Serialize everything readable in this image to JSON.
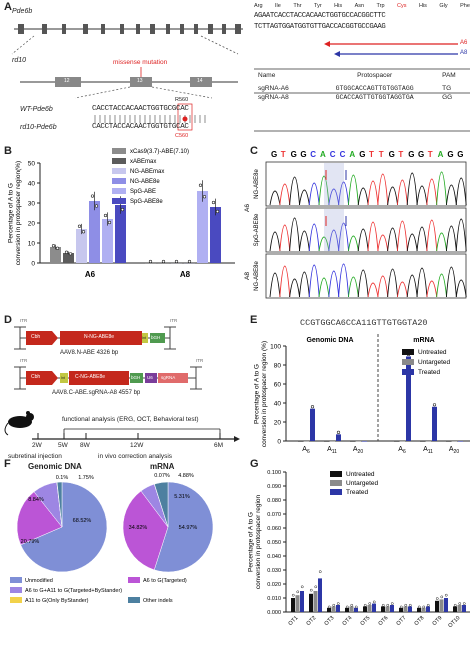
{
  "panel_letters": [
    "A",
    "B",
    "C",
    "D",
    "E",
    "F",
    "G"
  ],
  "panel_a": {
    "gene_label": "Pde6b",
    "rd10_label": "rd10",
    "mutation_label": "missense mutation",
    "exons": [
      "12",
      "13",
      "14"
    ],
    "wt_label": "WT-Pde6b",
    "rd10_row_label": "rd10-Pde6b",
    "wt_seq": "CACCTACCACAACTGGTGCGCAC",
    "rd10_seq": "CACCTACCACAACTGGTGTGCAC",
    "wt_residue": "R560",
    "rd10_residue": "C560",
    "aa_row": [
      "Arg",
      "Ile",
      "Thr",
      "Tyr",
      "His",
      "Asn",
      "Trp",
      "Cys",
      "His",
      "Gly",
      "Phe"
    ],
    "seq_top": "AGAATCACCTACCACAACTGGTGCCACGGCTTC",
    "seq_bottom": "TCTTAGTGGATGGTGTTGACCACGGTGCCGAAG",
    "guide_labels": [
      "A6",
      "A8"
    ],
    "table_headers": [
      "Name",
      "Protospacer",
      "PAM"
    ],
    "table_rows": [
      {
        "name": "sgRNA-A6",
        "protospacer": "GTGGCACCAGTTGTGGTAGG",
        "pam": "TG"
      },
      {
        "name": "sgRNA-A8",
        "protospacer": "GCACCAGTTGTGGTAGGTGA",
        "pam": "GG"
      }
    ]
  },
  "panel_b": {
    "chart_data": {
      "type": "bar",
      "ylabel": "Percentage of A to G conversion in protospacer region(%)",
      "categories": [
        "A6",
        "A8"
      ],
      "ylim": [
        0,
        50
      ],
      "yticks": [
        0,
        10,
        20,
        30,
        40,
        50
      ],
      "series": [
        {
          "name": "xCas9(3.7)-ABE(7.10)",
          "color": "#8c8c8c",
          "values": [
            8,
            0
          ]
        },
        {
          "name": "xABEmax",
          "color": "#5c5c5c",
          "values": [
            5,
            0
          ]
        },
        {
          "name": "NG-ABEmax",
          "color": "#c7c7ee",
          "values": [
            17,
            0
          ]
        },
        {
          "name": "NG-ABE8e",
          "color": "#8e8ee6",
          "values": [
            31,
            0
          ]
        },
        {
          "name": "SpG-ABE",
          "color": "#b0b0f2",
          "values": [
            22,
            36
          ]
        },
        {
          "name": "SpG-ABE8e",
          "color": "#4a4ac0",
          "values": [
            29,
            28
          ]
        }
      ]
    }
  },
  "panel_c": {
    "seq": [
      "G",
      "T",
      "G",
      "G",
      "C",
      "A",
      "C",
      "C",
      "A",
      "G",
      "T",
      "T",
      "G",
      "T",
      "G",
      "G",
      "T",
      "A",
      "G",
      "G"
    ],
    "seq_colors": [
      "#000",
      "#e33",
      "#000",
      "#000",
      "#33d",
      "#2a2",
      "#33d",
      "#33d",
      "#2a2",
      "#000",
      "#e33",
      "#e33",
      "#000",
      "#e33",
      "#000",
      "#000",
      "#e33",
      "#2a2",
      "#000",
      "#000"
    ],
    "row_labels": [
      "NG-ABE8e",
      "SpG-ABE8e",
      "NG-ABE8e"
    ],
    "group_labels": [
      "A6",
      "A8"
    ]
  },
  "panel_d": {
    "vec1": {
      "itr": "ITR",
      "promoter": "Cbh",
      "gene": "N-NG-ABE8e",
      "intein": "Int",
      "pa": "bGH",
      "caption": "AAV8.N-ABE 4326 bp"
    },
    "vec2": {
      "itr": "ITR",
      "promoter": "Cbh",
      "intein": "Int",
      "gene": "C-NG-ABE8e",
      "pa": "bGH",
      "u6": "U6",
      "sg": "sgRNA",
      "caption": "AAV8.C-ABE.sgRNA-A8 4557 bp"
    },
    "timeline_title": "functional analysis (ERG, OCT, Behavioral test)",
    "times": [
      "2W",
      "5W",
      "8W",
      "12W",
      "6M"
    ],
    "below": [
      "subretinal injection",
      "in vivo correction analysis"
    ]
  },
  "panel_e": {
    "sequence": "CCGTGGCA6CCA11GTTGTGGTA20",
    "groups": [
      "Genomic DNA",
      "mRNA"
    ],
    "chart_data": {
      "type": "bar",
      "ylabel": "Percentage of A to G conversion in protospacer region (%)",
      "categories": [
        "A6",
        "A11",
        "A20",
        "A6",
        "A11",
        "A20"
      ],
      "ylim": [
        0,
        100
      ],
      "yticks": [
        0,
        20,
        40,
        60,
        80,
        100
      ],
      "series": [
        {
          "name": "Untreated",
          "color": "#111111",
          "values": [
            0,
            0,
            0,
            0,
            0,
            0
          ]
        },
        {
          "name": "Untargeted",
          "color": "#8a8a8a",
          "values": [
            0,
            0,
            0,
            0,
            0,
            0
          ]
        },
        {
          "name": "Treated",
          "color": "#2c36a6",
          "values": [
            34,
            7,
            0,
            89,
            36,
            0
          ]
        }
      ]
    }
  },
  "panel_f": {
    "titles": [
      "Genomic DNA",
      "mRNA"
    ],
    "chart_data": [
      {
        "type": "pie",
        "title": "Genomic DNA",
        "values": [
          68.52,
          20.79,
          8.84,
          0.1,
          1.75
        ],
        "labels": [
          "68.52%",
          "20.79%",
          "8.84%",
          "0.1%",
          "1.75%"
        ]
      },
      {
        "type": "pie",
        "title": "mRNA",
        "values": [
          54.97,
          34.82,
          5.31,
          0.07,
          4.88
        ],
        "labels": [
          "54.97%",
          "34.82%",
          "5.31%",
          "0.07%",
          "4.88%"
        ]
      }
    ],
    "colors": [
      "#7f8fd6",
      "#bb55d6",
      "#9d86e3",
      "#f2d24a",
      "#4d80a0"
    ],
    "legend": [
      "Unmodified",
      "A6 to G(Targeted)",
      "A6 to G+A11 to G(Targeted+ByStander)",
      "A11 to G(Only ByStander)",
      "Other indels"
    ]
  },
  "panel_g": {
    "chart_data": {
      "type": "bar",
      "ylabel": "Percentage of A to G conversion in protospacer region",
      "categories": [
        "OT1",
        "OT2",
        "OT3",
        "OT4",
        "OT5",
        "OT6",
        "OT7",
        "OT8",
        "OT9",
        "OT10"
      ],
      "ylim": [
        0,
        0.1
      ],
      "yticks": [
        "0.000",
        "0.010",
        "0.020",
        "0.030",
        "0.040",
        "0.050",
        "0.060",
        "0.070",
        "0.080",
        "0.090",
        "0.100"
      ],
      "series": [
        {
          "name": "Untreated",
          "color": "#111111",
          "values": [
            0.01,
            0.013,
            0.003,
            0.003,
            0.004,
            0.004,
            0.003,
            0.003,
            0.008,
            0.004
          ]
        },
        {
          "name": "Untargeted",
          "color": "#8a8a8a",
          "values": [
            0.012,
            0.015,
            0.004,
            0.004,
            0.005,
            0.004,
            0.004,
            0.003,
            0.009,
            0.005
          ]
        },
        {
          "name": "Treated",
          "color": "#2c36a6",
          "values": [
            0.015,
            0.024,
            0.005,
            0.003,
            0.006,
            0.005,
            0.004,
            0.004,
            0.01,
            0.005
          ]
        }
      ]
    }
  }
}
